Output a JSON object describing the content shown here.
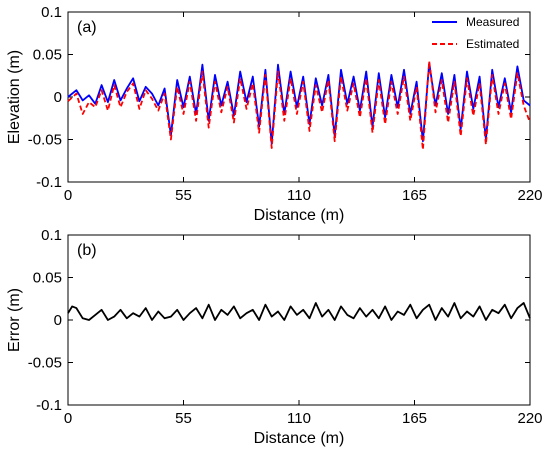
{
  "chart_data": [
    {
      "type": "line",
      "panel_label": "(a)",
      "xlabel": "Distance (m)",
      "ylabel": "Elevation (m)",
      "xlim": [
        0,
        220
      ],
      "ylim": [
        -0.1,
        0.1
      ],
      "xticks": [
        0,
        55,
        110,
        165,
        220
      ],
      "xtick_labels": [
        "0",
        "55",
        "110",
        "165",
        "220"
      ],
      "yticks": [
        -0.1,
        -0.05,
        0,
        0.05,
        0.1
      ],
      "ytick_labels": [
        "-0.1",
        "-0.05",
        "0",
        "0.05",
        "0.1"
      ],
      "legend_position": "top-right",
      "series": [
        {
          "name": "Measured",
          "color": "#0000ff",
          "style": "solid",
          "x": [
            0,
            4,
            7,
            10,
            13,
            16,
            19,
            22,
            25,
            28,
            31,
            34,
            37,
            40,
            43,
            46,
            49,
            52,
            55,
            58,
            61,
            64,
            67,
            70,
            73,
            76,
            79,
            82,
            85,
            88,
            91,
            94,
            97,
            100,
            103,
            106,
            109,
            112,
            115,
            118,
            121,
            124,
            127,
            130,
            133,
            136,
            139,
            142,
            145,
            148,
            151,
            154,
            157,
            160,
            163,
            166,
            169,
            172,
            175,
            178,
            181,
            184,
            187,
            190,
            193,
            196,
            199,
            202,
            205,
            208,
            211,
            214,
            217,
            220
          ],
          "y": [
            0,
            0.008,
            -0.004,
            0.002,
            -0.008,
            0.014,
            -0.006,
            0.02,
            -0.004,
            0.01,
            0.022,
            -0.005,
            0.012,
            0.004,
            -0.01,
            0.01,
            -0.045,
            0.02,
            -0.012,
            0.024,
            -0.02,
            0.038,
            -0.028,
            0.026,
            -0.01,
            0.018,
            -0.022,
            0.03,
            -0.006,
            0.024,
            -0.035,
            0.032,
            -0.055,
            0.038,
            -0.02,
            0.03,
            -0.012,
            0.024,
            -0.032,
            0.022,
            -0.01,
            0.026,
            -0.046,
            0.032,
            -0.008,
            0.024,
            -0.016,
            0.03,
            -0.035,
            0.028,
            -0.024,
            0.026,
            -0.012,
            0.032,
            -0.02,
            0.018,
            -0.052,
            0.04,
            -0.01,
            0.028,
            -0.02,
            0.026,
            -0.038,
            0.03,
            -0.014,
            0.024,
            -0.05,
            0.032,
            -0.012,
            0.022,
            -0.018,
            0.036,
            -0.004,
            -0.01
          ]
        },
        {
          "name": "Estimated",
          "color": "#ff0000",
          "style": "dashed",
          "x": [
            0,
            4,
            7,
            10,
            13,
            16,
            19,
            22,
            25,
            28,
            31,
            34,
            37,
            40,
            43,
            46,
            49,
            52,
            55,
            58,
            61,
            64,
            67,
            70,
            73,
            76,
            79,
            82,
            85,
            88,
            91,
            94,
            97,
            100,
            103,
            106,
            109,
            112,
            115,
            118,
            121,
            124,
            127,
            130,
            133,
            136,
            139,
            142,
            145,
            148,
            151,
            154,
            157,
            160,
            163,
            166,
            169,
            172,
            175,
            178,
            181,
            184,
            187,
            190,
            193,
            196,
            199,
            202,
            205,
            208,
            211,
            214,
            217,
            220
          ],
          "y": [
            -0.005,
            0.004,
            -0.02,
            -0.006,
            -0.012,
            0.008,
            -0.016,
            0.014,
            -0.012,
            0.006,
            0.016,
            -0.014,
            0.008,
            -0.002,
            -0.016,
            0.004,
            -0.05,
            0.012,
            -0.02,
            0.018,
            -0.028,
            0.03,
            -0.036,
            0.018,
            -0.018,
            0.012,
            -0.03,
            0.022,
            -0.014,
            0.016,
            -0.042,
            0.026,
            -0.06,
            0.03,
            -0.028,
            0.022,
            -0.02,
            0.018,
            -0.04,
            0.014,
            -0.018,
            0.02,
            -0.052,
            0.024,
            -0.016,
            0.016,
            -0.024,
            0.022,
            -0.042,
            0.02,
            -0.032,
            0.018,
            -0.02,
            0.024,
            -0.028,
            0.012,
            -0.062,
            0.042,
            -0.018,
            0.02,
            -0.03,
            0.018,
            -0.046,
            0.022,
            -0.022,
            0.016,
            -0.056,
            0.026,
            -0.02,
            0.016,
            -0.026,
            0.028,
            -0.01,
            -0.03
          ]
        }
      ]
    },
    {
      "type": "line",
      "panel_label": "(b)",
      "xlabel": "Distance (m)",
      "ylabel": "Error (m)",
      "xlim": [
        0,
        220
      ],
      "ylim": [
        -0.1,
        0.1
      ],
      "xticks": [
        0,
        55,
        110,
        165,
        220
      ],
      "xtick_labels": [
        "0",
        "55",
        "110",
        "165",
        "220"
      ],
      "yticks": [
        -0.1,
        -0.05,
        0,
        0.05,
        0.1
      ],
      "ytick_labels": [
        "-0.1",
        "-0.05",
        "0",
        "0.05",
        "0.1"
      ],
      "series": [
        {
          "color": "#000000",
          "style": "solid",
          "x": [
            0,
            2,
            4,
            7,
            10,
            13,
            16,
            19,
            22,
            25,
            28,
            31,
            34,
            37,
            40,
            43,
            46,
            49,
            52,
            55,
            58,
            61,
            64,
            67,
            70,
            73,
            76,
            79,
            82,
            85,
            88,
            91,
            94,
            97,
            100,
            103,
            106,
            109,
            112,
            115,
            118,
            121,
            124,
            127,
            130,
            133,
            136,
            139,
            142,
            145,
            148,
            151,
            154,
            157,
            160,
            163,
            166,
            169,
            172,
            175,
            178,
            181,
            184,
            187,
            190,
            193,
            196,
            199,
            202,
            205,
            208,
            211,
            214,
            217,
            220
          ],
          "y": [
            0.008,
            0.016,
            0.014,
            0.002,
            0.0,
            0.006,
            0.012,
            0.0,
            0.004,
            0.012,
            0.002,
            0.008,
            0.004,
            0.014,
            0.0,
            0.01,
            0.002,
            0.004,
            0.012,
            0.0,
            0.008,
            0.014,
            0.002,
            0.018,
            0.0,
            0.012,
            0.006,
            0.016,
            0.002,
            0.008,
            0.012,
            0.0,
            0.018,
            0.004,
            0.01,
            0.0,
            0.016,
            0.006,
            0.012,
            0.002,
            0.02,
            0.004,
            0.012,
            0.0,
            0.016,
            0.006,
            0.002,
            0.014,
            0.004,
            0.012,
            0.002,
            0.016,
            0.0,
            0.01,
            0.006,
            0.018,
            0.002,
            0.012,
            0.018,
            0.0,
            0.014,
            0.004,
            0.02,
            0.002,
            0.01,
            0.004,
            0.016,
            0.0,
            0.012,
            0.008,
            0.018,
            0.002,
            0.014,
            0.02,
            0.002
          ]
        }
      ]
    }
  ]
}
